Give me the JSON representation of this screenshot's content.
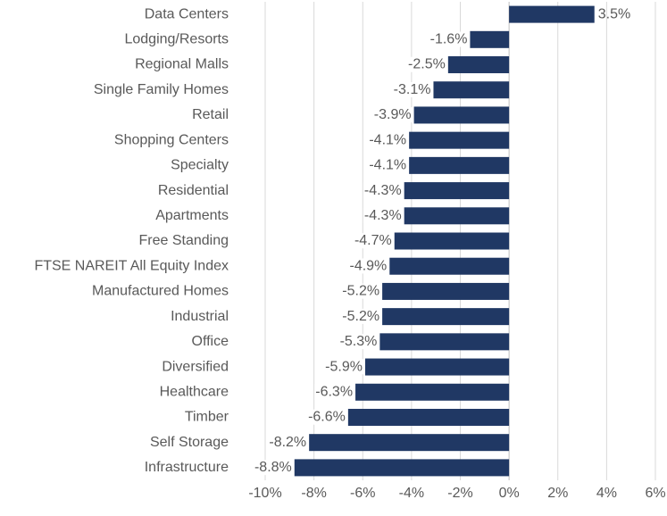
{
  "chart_data": {
    "type": "bar",
    "orientation": "horizontal",
    "categories": [
      "Data Centers",
      "Lodging/Resorts",
      "Regional Malls",
      "Single Family Homes",
      "Retail",
      "Shopping Centers",
      "Specialty",
      "Residential",
      "Apartments",
      "Free Standing",
      "FTSE NAREIT All Equity Index",
      "Manufactured Homes",
      "Industrial",
      "Office",
      "Diversified",
      "Healthcare",
      "Timber",
      "Self Storage",
      "Infrastructure"
    ],
    "values": [
      3.5,
      -1.6,
      -2.5,
      -3.1,
      -3.9,
      -4.1,
      -4.1,
      -4.3,
      -4.3,
      -4.7,
      -4.9,
      -5.2,
      -5.2,
      -5.3,
      -5.9,
      -6.3,
      -6.6,
      -8.2,
      -8.8
    ],
    "value_labels": [
      "3.5%",
      "-1.6%",
      "-2.5%",
      "-3.1%",
      "-3.9%",
      "-4.1%",
      "-4.1%",
      "-4.3%",
      "-4.3%",
      "-4.7%",
      "-4.9%",
      "-5.2%",
      "-5.2%",
      "-5.3%",
      "-5.9%",
      "-6.3%",
      "-6.6%",
      "-8.2%",
      "-8.8%"
    ],
    "color": "#203864",
    "xlim": [
      -10,
      6
    ],
    "xticks": [
      {
        "value": -10,
        "label": "-10%"
      },
      {
        "value": -8,
        "label": "-8%"
      },
      {
        "value": -6,
        "label": "-6%"
      },
      {
        "value": -4,
        "label": "-4%"
      },
      {
        "value": -2,
        "label": "-2%"
      },
      {
        "value": 0,
        "label": "0%"
      },
      {
        "value": 2,
        "label": "2%"
      },
      {
        "value": 4,
        "label": "4%"
      },
      {
        "value": 6,
        "label": "6%"
      }
    ],
    "grid": true
  }
}
